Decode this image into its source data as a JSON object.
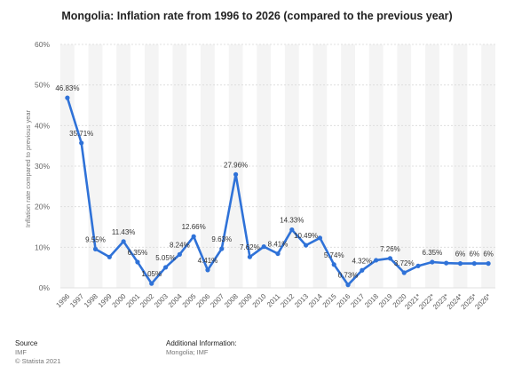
{
  "chart_data": {
    "type": "line",
    "title": "Mongolia: Inflation rate from 1996 to 2026 (compared to the previous year)",
    "ylabel": "Inflation rate compared to previous year",
    "xlabel": "",
    "ylim": [
      0,
      60
    ],
    "yticks": [
      "0%",
      "10%",
      "20%",
      "30%",
      "40%",
      "50%",
      "60%"
    ],
    "grid": true,
    "line_color": "#2f72d8",
    "categories": [
      "1996",
      "1997",
      "1998",
      "1999",
      "2000",
      "2001",
      "2002",
      "2003",
      "2004",
      "2005",
      "2006",
      "2007",
      "2008",
      "2009",
      "2010",
      "2011",
      "2012",
      "2013",
      "2014",
      "2015",
      "2016",
      "2017",
      "2018",
      "2019",
      "2020",
      "2021*",
      "2022*",
      "2023*",
      "2024*",
      "2025*",
      "2026*"
    ],
    "values": [
      46.83,
      35.71,
      9.55,
      7.6,
      11.43,
      6.35,
      1.05,
      5.05,
      8.24,
      12.66,
      4.41,
      9.63,
      27.96,
      7.62,
      10.15,
      8.41,
      14.33,
      10.49,
      12.3,
      5.74,
      0.73,
      4.32,
      6.8,
      7.26,
      3.72,
      5.4,
      6.35,
      6.1,
      6.0,
      6.0,
      6.0
    ],
    "data_labels": [
      "46.83%",
      "35.71%",
      "9.55%",
      null,
      "11.43%",
      "6.35%",
      "1.05%",
      "5.05%",
      "8.24%",
      "12.66%",
      "4.41%",
      "9.63%",
      "27.96%",
      "7.62%",
      null,
      "8.41%",
      "14.33%",
      "10.49%",
      null,
      "5.74%",
      "0.73%",
      "4.32%",
      null,
      "7.26%",
      "3.72%",
      null,
      "6.35%",
      null,
      "6%",
      "6%",
      "6%"
    ]
  },
  "footer": {
    "source_heading": "Source",
    "source_line1": "IMF",
    "source_line2": "© Statista 2021",
    "info_heading": "Additional Information:",
    "info_line1": "Mongolia; IMF"
  }
}
